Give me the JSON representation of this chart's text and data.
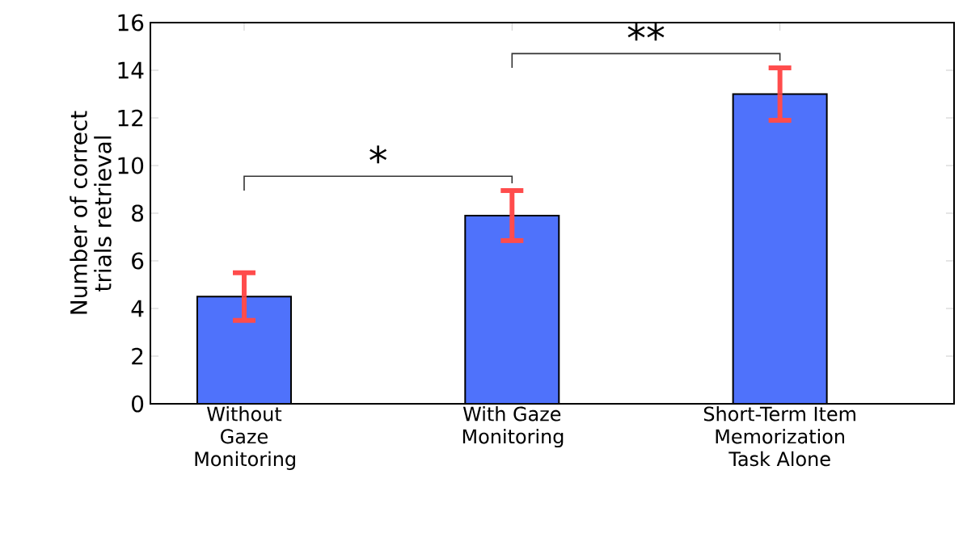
{
  "chart_data": {
    "type": "bar",
    "ylabel": "Number of correct trials retrieval",
    "categories": [
      "Without Gaze Monitoring",
      "With Gaze Monitoring",
      "Short-Term Item Memorization Task Alone"
    ],
    "values": [
      4.5,
      7.9,
      13.0
    ],
    "errors": [
      1.0,
      1.05,
      1.1
    ],
    "color": "#4f72fb",
    "ylim": [
      0,
      16
    ],
    "yticks": [
      0,
      2,
      4,
      6,
      8,
      10,
      12,
      14,
      16
    ],
    "grid": false,
    "legend": false,
    "annotations": [
      "*",
      "**"
    ]
  }
}
